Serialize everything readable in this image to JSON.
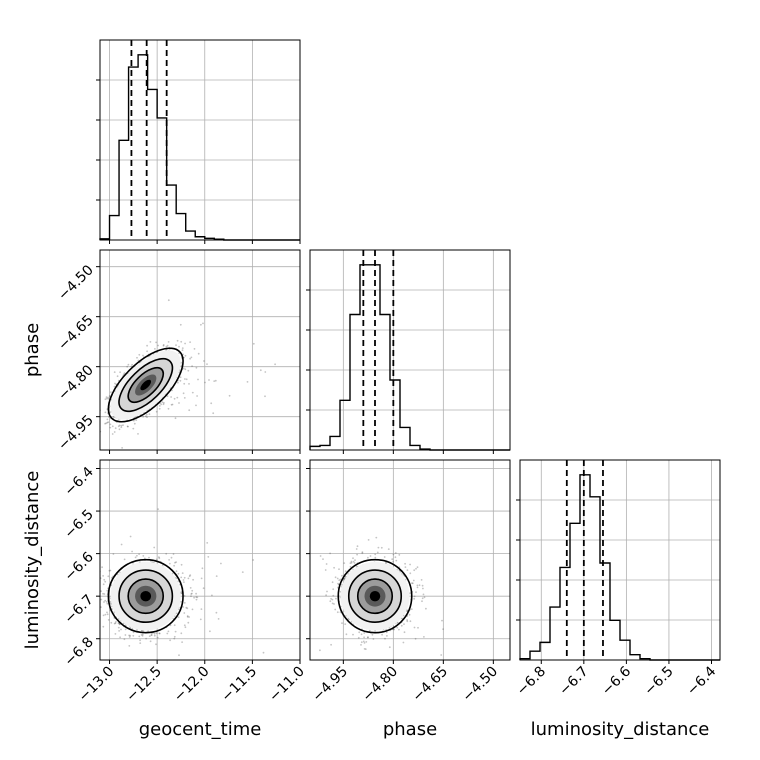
{
  "chart_data": {
    "type": "corner",
    "parameters": [
      "geocent_time",
      "phase",
      "luminosity_distance"
    ],
    "x_axis_labels": [
      "geocent_time",
      "phase",
      "luminosity_distance"
    ],
    "y_axis_labels": [
      "phase",
      "luminosity_distance"
    ],
    "ranges": {
      "geocent_time": [
        -13.1,
        -11.0
      ],
      "phase": [
        -5.05,
        -4.45
      ],
      "luminosity_distance": [
        -6.85,
        -6.38
      ]
    },
    "ticks": {
      "geocent_time": [
        -13.0,
        -12.5,
        -12.0,
        -11.5,
        -11.0
      ],
      "phase": [
        -4.95,
        -4.8,
        -4.65,
        -4.5
      ],
      "luminosity_distance": [
        -6.8,
        -6.7,
        -6.6,
        -6.5,
        -6.4
      ]
    },
    "tick_labels": {
      "geocent_time": [
        "−13.0",
        "−12.5",
        "−12.0",
        "−11.5",
        "−11.0"
      ],
      "phase": [
        "−4.95",
        "−4.80",
        "−4.65",
        "−4.50"
      ],
      "luminosity_distance": [
        "−6.8",
        "−6.7",
        "−6.6",
        "−6.5",
        "−6.4"
      ]
    },
    "quantiles": {
      "geocent_time": [
        -12.77,
        -12.61,
        -12.4
      ],
      "phase": [
        -4.89,
        -4.855,
        -4.8
      ],
      "luminosity_distance": [
        -6.74,
        -6.7,
        -6.655
      ]
    },
    "histograms": {
      "geocent_time": {
        "edges": [
          -13.1,
          -13.0,
          -12.9,
          -12.8,
          -12.7,
          -12.6,
          -12.5,
          -12.4,
          -12.3,
          -12.2,
          -12.1,
          -12.0,
          -11.9,
          -11.8,
          -11.7,
          -11.6,
          -11.5,
          -11.4,
          -11.3,
          -11.2,
          -11.1,
          -11.0
        ],
        "counts": [
          3,
          60,
          245,
          425,
          455,
          370,
          300,
          135,
          65,
          22,
          8,
          4,
          2,
          0,
          0,
          0,
          0,
          0,
          0,
          0,
          0
        ]
      },
      "phase": {
        "edges": [
          -5.05,
          -5.02,
          -4.99,
          -4.96,
          -4.93,
          -4.9,
          -4.87,
          -4.84,
          -4.81,
          -4.78,
          -4.75,
          -4.72,
          -4.69,
          -4.66,
          -4.63,
          -4.6,
          -4.57,
          -4.54,
          -4.51,
          -4.48,
          -4.45
        ],
        "counts": [
          8,
          10,
          30,
          110,
          300,
          410,
          410,
          300,
          155,
          50,
          10,
          2,
          0,
          0,
          0,
          0,
          0,
          0,
          0,
          0
        ]
      },
      "luminosity_distance": {
        "edges": [
          -6.85,
          -6.8265,
          -6.803,
          -6.7795,
          -6.756,
          -6.7325,
          -6.709,
          -6.6855,
          -6.662,
          -6.6385,
          -6.615,
          -6.5915,
          -6.568,
          -6.5445,
          -6.521,
          -6.4975,
          -6.474,
          -6.4505,
          -6.427,
          -6.4035,
          -6.38
        ],
        "counts": [
          3,
          20,
          40,
          120,
          210,
          310,
          420,
          370,
          220,
          90,
          45,
          12,
          3,
          0,
          0,
          0,
          0,
          0,
          0,
          0
        ]
      }
    },
    "joint": {
      "phase_vs_geocent_time": {
        "center": [
          -12.62,
          -4.855
        ],
        "sigma": [
          0.16,
          0.045
        ],
        "correlation": 0.65
      },
      "luminosity_distance_vs_geocent_time": {
        "center": [
          -12.62,
          -6.7
        ],
        "sigma": [
          0.16,
          0.035
        ],
        "correlation": 0.0
      },
      "luminosity_distance_vs_phase": {
        "center": [
          -4.855,
          -6.7
        ],
        "sigma": [
          0.045,
          0.035
        ],
        "correlation": 0.0
      }
    },
    "grid": true
  }
}
